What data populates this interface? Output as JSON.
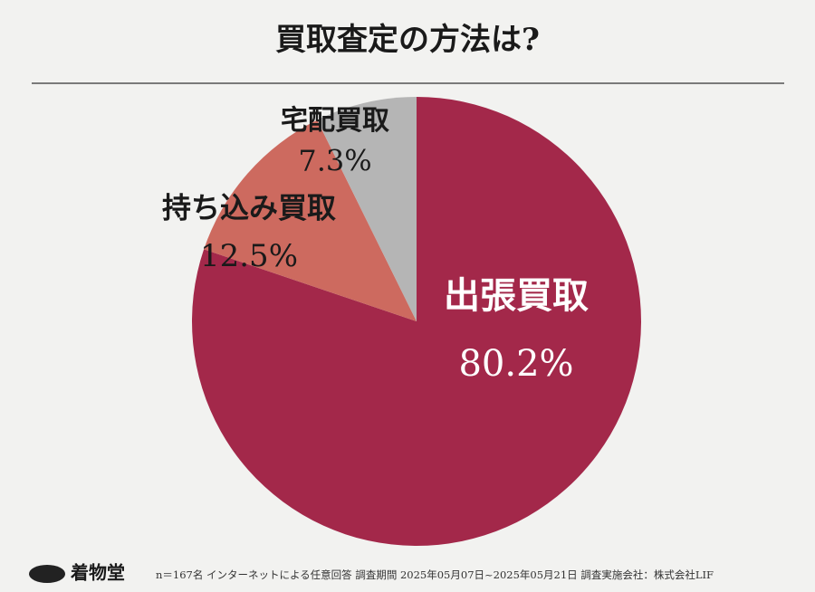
{
  "chart_data": {
    "type": "pie",
    "title": "買取査定の方法は?",
    "categories": [
      "出張買取",
      "持ち込み買取",
      "宅配買取"
    ],
    "values": [
      80.2,
      12.5,
      7.3
    ],
    "value_labels": [
      "80.2%",
      "12.5%",
      "7.3%"
    ],
    "colors": [
      "#a3284a",
      "#cd6a5f",
      "#b5b5b5"
    ],
    "label_colors": [
      "#ffffff",
      "#1a1a1a",
      "#1a1a1a"
    ]
  },
  "logo": "着物堂",
  "footer": "n＝167名 インターネットによる任意回答 調査期間 2025年05月07日~2025年05月21日 調査実施会社：株式会社LIF"
}
